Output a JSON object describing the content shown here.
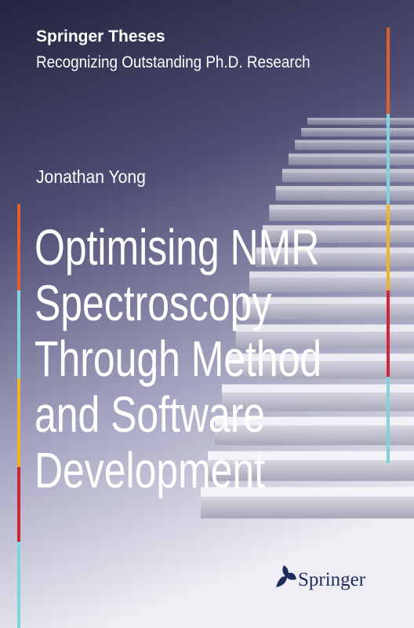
{
  "header": {
    "series": "Springer Theses",
    "subtitle": "Recognizing Outstanding Ph.D. Research"
  },
  "author": "Jonathan Yong",
  "title": {
    "lines": [
      "Optimising NMR",
      "Spectroscopy",
      "Through Method",
      "and Software",
      "Development"
    ]
  },
  "publisher": "Springer"
}
